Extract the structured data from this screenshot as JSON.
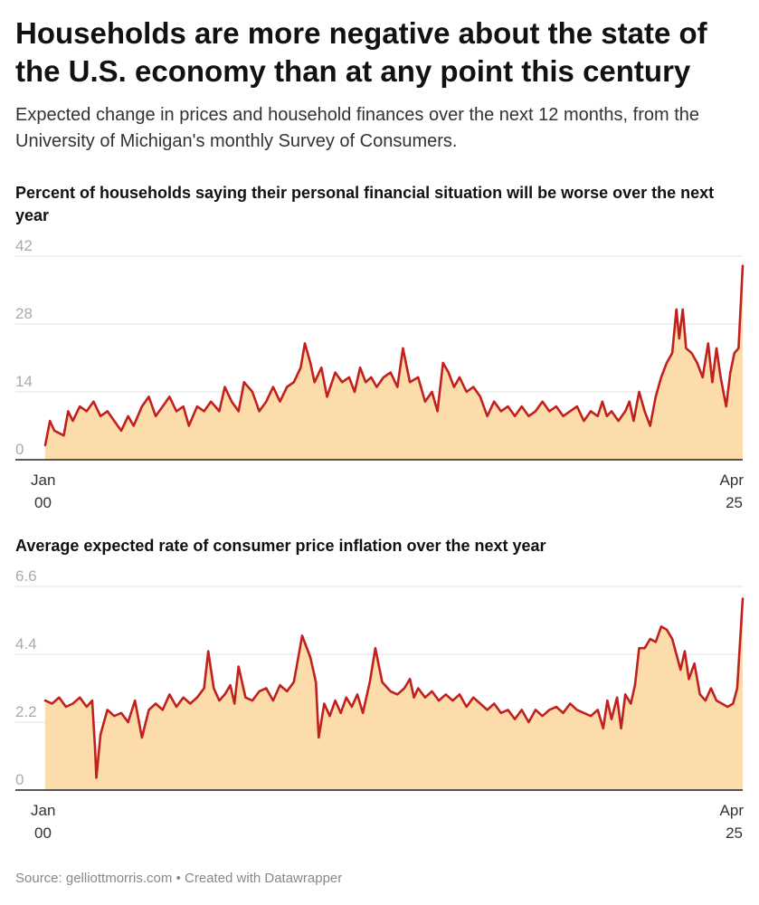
{
  "title": "Households are more negative about the state of the U.S. economy than at any point this century",
  "subtitle": "Expected change in prices and household finances over the next 12 months, from the University of Michigan's monthly Survey of Consumers.",
  "footer": {
    "source": "Source: gelliottmorris.com",
    "separator": "•",
    "credit": "Created with Datawrapper"
  },
  "colors": {
    "line": "#c21f1f",
    "area": "#fbdcaa",
    "grid": "#e0e0e0",
    "axis": "#222222",
    "tick": "#aaaaaa"
  },
  "chart_data": [
    {
      "type": "area",
      "title": "Percent of households saying their personal financial situation will be worse over the next year",
      "ylim": [
        0,
        42
      ],
      "yticks": [
        "0",
        "14",
        "28",
        "42"
      ],
      "xlim": [
        2000.0,
        2025.25
      ],
      "xticks": [
        {
          "value": 2000.0,
          "line1": "Jan",
          "line2": "00",
          "align": "start"
        },
        {
          "value": 2025.25,
          "line1": "Apr",
          "line2": "25",
          "align": "end"
        }
      ],
      "points": [
        [
          2000.0,
          3
        ],
        [
          2000.17,
          8
        ],
        [
          2000.33,
          6
        ],
        [
          2000.67,
          5
        ],
        [
          2000.83,
          10
        ],
        [
          2001.0,
          8
        ],
        [
          2001.25,
          11
        ],
        [
          2001.5,
          10
        ],
        [
          2001.75,
          12
        ],
        [
          2002.0,
          9
        ],
        [
          2002.25,
          10
        ],
        [
          2002.5,
          8
        ],
        [
          2002.75,
          6
        ],
        [
          2003.0,
          9
        ],
        [
          2003.2,
          7
        ],
        [
          2003.5,
          11
        ],
        [
          2003.75,
          13
        ],
        [
          2004.0,
          9
        ],
        [
          2004.25,
          11
        ],
        [
          2004.5,
          13
        ],
        [
          2004.75,
          10
        ],
        [
          2005.0,
          11
        ],
        [
          2005.2,
          7
        ],
        [
          2005.5,
          11
        ],
        [
          2005.75,
          10
        ],
        [
          2006.0,
          12
        ],
        [
          2006.3,
          10
        ],
        [
          2006.5,
          15
        ],
        [
          2006.75,
          12
        ],
        [
          2007.0,
          10
        ],
        [
          2007.2,
          16
        ],
        [
          2007.5,
          14
        ],
        [
          2007.75,
          10
        ],
        [
          2008.0,
          12
        ],
        [
          2008.25,
          15
        ],
        [
          2008.5,
          12
        ],
        [
          2008.75,
          15
        ],
        [
          2009.0,
          16
        ],
        [
          2009.25,
          19
        ],
        [
          2009.4,
          24
        ],
        [
          2009.6,
          20
        ],
        [
          2009.75,
          16
        ],
        [
          2010.0,
          19
        ],
        [
          2010.2,
          13
        ],
        [
          2010.5,
          18
        ],
        [
          2010.75,
          16
        ],
        [
          2011.0,
          17
        ],
        [
          2011.2,
          14
        ],
        [
          2011.4,
          19
        ],
        [
          2011.6,
          16
        ],
        [
          2011.8,
          17
        ],
        [
          2012.0,
          15
        ],
        [
          2012.25,
          17
        ],
        [
          2012.5,
          18
        ],
        [
          2012.75,
          15
        ],
        [
          2012.95,
          23
        ],
        [
          2013.2,
          16
        ],
        [
          2013.5,
          17
        ],
        [
          2013.75,
          12
        ],
        [
          2014.0,
          14
        ],
        [
          2014.2,
          10
        ],
        [
          2014.4,
          20
        ],
        [
          2014.6,
          18
        ],
        [
          2014.8,
          15
        ],
        [
          2015.0,
          17
        ],
        [
          2015.25,
          14
        ],
        [
          2015.5,
          15
        ],
        [
          2015.75,
          13
        ],
        [
          2016.0,
          9
        ],
        [
          2016.25,
          12
        ],
        [
          2016.5,
          10
        ],
        [
          2016.75,
          11
        ],
        [
          2017.0,
          9
        ],
        [
          2017.25,
          11
        ],
        [
          2017.5,
          9
        ],
        [
          2017.75,
          10
        ],
        [
          2018.0,
          12
        ],
        [
          2018.25,
          10
        ],
        [
          2018.5,
          11
        ],
        [
          2018.75,
          9
        ],
        [
          2019.0,
          10
        ],
        [
          2019.25,
          11
        ],
        [
          2019.5,
          8
        ],
        [
          2019.75,
          10
        ],
        [
          2020.0,
          9
        ],
        [
          2020.17,
          12
        ],
        [
          2020.33,
          9
        ],
        [
          2020.5,
          10
        ],
        [
          2020.75,
          8
        ],
        [
          2021.0,
          10
        ],
        [
          2021.15,
          12
        ],
        [
          2021.3,
          8
        ],
        [
          2021.5,
          14
        ],
        [
          2021.7,
          10
        ],
        [
          2021.9,
          7
        ],
        [
          2022.1,
          13
        ],
        [
          2022.3,
          17
        ],
        [
          2022.5,
          20
        ],
        [
          2022.7,
          22
        ],
        [
          2022.85,
          31
        ],
        [
          2022.95,
          25
        ],
        [
          2023.08,
          31
        ],
        [
          2023.2,
          23
        ],
        [
          2023.4,
          22
        ],
        [
          2023.6,
          20
        ],
        [
          2023.8,
          17
        ],
        [
          2024.0,
          24
        ],
        [
          2024.15,
          16
        ],
        [
          2024.3,
          23
        ],
        [
          2024.45,
          17
        ],
        [
          2024.65,
          11
        ],
        [
          2024.8,
          18
        ],
        [
          2024.95,
          22
        ],
        [
          2025.1,
          23
        ],
        [
          2025.25,
          40
        ]
      ]
    },
    {
      "type": "area",
      "title": "Average expected rate of consumer price inflation over the next year",
      "ylim": [
        0,
        6.6
      ],
      "yticks": [
        "0",
        "2.2",
        "4.4",
        "6.6"
      ],
      "xlim": [
        2000.0,
        2025.25
      ],
      "xticks": [
        {
          "value": 2000.0,
          "line1": "Jan",
          "line2": "00",
          "align": "start"
        },
        {
          "value": 2025.25,
          "line1": "Apr",
          "line2": "25",
          "align": "end"
        }
      ],
      "points": [
        [
          2000.0,
          2.9
        ],
        [
          2000.25,
          2.8
        ],
        [
          2000.5,
          3.0
        ],
        [
          2000.75,
          2.7
        ],
        [
          2001.0,
          2.8
        ],
        [
          2001.25,
          3.0
        ],
        [
          2001.5,
          2.7
        ],
        [
          2001.7,
          2.9
        ],
        [
          2001.8,
          1.4
        ],
        [
          2001.85,
          0.4
        ],
        [
          2002.0,
          1.8
        ],
        [
          2002.25,
          2.6
        ],
        [
          2002.5,
          2.4
        ],
        [
          2002.75,
          2.5
        ],
        [
          2003.0,
          2.2
        ],
        [
          2003.25,
          2.9
        ],
        [
          2003.5,
          1.7
        ],
        [
          2003.75,
          2.6
        ],
        [
          2004.0,
          2.8
        ],
        [
          2004.25,
          2.6
        ],
        [
          2004.5,
          3.1
        ],
        [
          2004.75,
          2.7
        ],
        [
          2005.0,
          3.0
        ],
        [
          2005.25,
          2.8
        ],
        [
          2005.5,
          3.0
        ],
        [
          2005.75,
          3.3
        ],
        [
          2005.9,
          4.5
        ],
        [
          2006.1,
          3.3
        ],
        [
          2006.3,
          2.9
        ],
        [
          2006.5,
          3.1
        ],
        [
          2006.7,
          3.4
        ],
        [
          2006.85,
          2.8
        ],
        [
          2007.0,
          4.0
        ],
        [
          2007.25,
          3.0
        ],
        [
          2007.5,
          2.9
        ],
        [
          2007.75,
          3.2
        ],
        [
          2008.0,
          3.3
        ],
        [
          2008.25,
          2.9
        ],
        [
          2008.5,
          3.4
        ],
        [
          2008.75,
          3.2
        ],
        [
          2009.0,
          3.5
        ],
        [
          2009.3,
          5.0
        ],
        [
          2009.6,
          4.3
        ],
        [
          2009.8,
          3.5
        ],
        [
          2009.9,
          1.7
        ],
        [
          2010.1,
          2.8
        ],
        [
          2010.3,
          2.4
        ],
        [
          2010.5,
          2.9
        ],
        [
          2010.7,
          2.5
        ],
        [
          2010.9,
          3.0
        ],
        [
          2011.1,
          2.7
        ],
        [
          2011.3,
          3.1
        ],
        [
          2011.5,
          2.5
        ],
        [
          2011.75,
          3.5
        ],
        [
          2011.95,
          4.6
        ],
        [
          2012.2,
          3.5
        ],
        [
          2012.5,
          3.2
        ],
        [
          2012.75,
          3.1
        ],
        [
          2013.0,
          3.3
        ],
        [
          2013.2,
          3.6
        ],
        [
          2013.35,
          3.0
        ],
        [
          2013.5,
          3.3
        ],
        [
          2013.75,
          3.0
        ],
        [
          2014.0,
          3.2
        ],
        [
          2014.25,
          2.9
        ],
        [
          2014.5,
          3.1
        ],
        [
          2014.75,
          2.9
        ],
        [
          2015.0,
          3.1
        ],
        [
          2015.25,
          2.7
        ],
        [
          2015.5,
          3.0
        ],
        [
          2015.75,
          2.8
        ],
        [
          2016.0,
          2.6
        ],
        [
          2016.25,
          2.8
        ],
        [
          2016.5,
          2.5
        ],
        [
          2016.75,
          2.6
        ],
        [
          2017.0,
          2.3
        ],
        [
          2017.25,
          2.6
        ],
        [
          2017.5,
          2.2
        ],
        [
          2017.75,
          2.6
        ],
        [
          2018.0,
          2.4
        ],
        [
          2018.25,
          2.6
        ],
        [
          2018.5,
          2.7
        ],
        [
          2018.75,
          2.5
        ],
        [
          2019.0,
          2.8
        ],
        [
          2019.25,
          2.6
        ],
        [
          2019.5,
          2.5
        ],
        [
          2019.75,
          2.4
        ],
        [
          2020.0,
          2.6
        ],
        [
          2020.2,
          2.0
        ],
        [
          2020.35,
          2.9
        ],
        [
          2020.5,
          2.3
        ],
        [
          2020.7,
          3.0
        ],
        [
          2020.85,
          2.0
        ],
        [
          2021.0,
          3.1
        ],
        [
          2021.2,
          2.8
        ],
        [
          2021.35,
          3.4
        ],
        [
          2021.5,
          4.6
        ],
        [
          2021.7,
          4.6
        ],
        [
          2021.9,
          4.9
        ],
        [
          2022.1,
          4.8
        ],
        [
          2022.3,
          5.3
        ],
        [
          2022.5,
          5.2
        ],
        [
          2022.7,
          4.9
        ],
        [
          2022.85,
          4.4
        ],
        [
          2023.0,
          3.9
        ],
        [
          2023.15,
          4.5
        ],
        [
          2023.3,
          3.6
        ],
        [
          2023.5,
          4.1
        ],
        [
          2023.7,
          3.1
        ],
        [
          2023.9,
          2.9
        ],
        [
          2024.1,
          3.3
        ],
        [
          2024.3,
          2.9
        ],
        [
          2024.5,
          2.8
        ],
        [
          2024.7,
          2.7
        ],
        [
          2024.9,
          2.8
        ],
        [
          2025.05,
          3.3
        ],
        [
          2025.25,
          6.2
        ]
      ]
    }
  ]
}
